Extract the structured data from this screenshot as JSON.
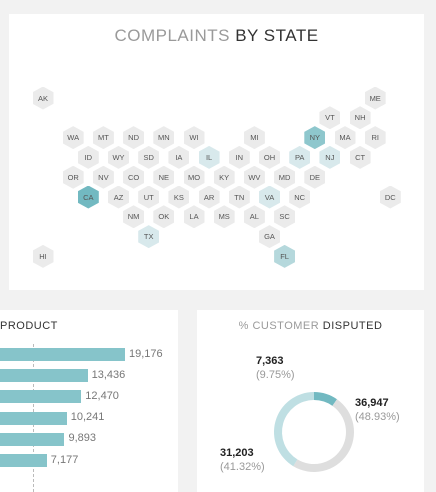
{
  "map": {
    "title_lite": "COMPLAINTS",
    "title_dark": "BY STATE",
    "color_base": "#ebebeb",
    "color_light": "#d8e9ec",
    "color_medium": "#b5d8dc",
    "color_strong": "#8ec7cd",
    "color_max": "#72b9c1",
    "states": [
      {
        "code": "AK",
        "row": 0,
        "col": 0,
        "level": 0
      },
      {
        "code": "ME",
        "row": 0,
        "col": 11,
        "level": 0
      },
      {
        "code": "VT",
        "row": 1,
        "col": 9.5,
        "level": 0
      },
      {
        "code": "NH",
        "row": 1,
        "col": 10.5,
        "level": 0
      },
      {
        "code": "WA",
        "row": 2,
        "col": 1,
        "level": 0
      },
      {
        "code": "MT",
        "row": 2,
        "col": 2,
        "level": 0
      },
      {
        "code": "ND",
        "row": 2,
        "col": 3,
        "level": 0
      },
      {
        "code": "MN",
        "row": 2,
        "col": 4,
        "level": 0
      },
      {
        "code": "WI",
        "row": 2,
        "col": 5,
        "level": 0
      },
      {
        "code": "MI",
        "row": 2,
        "col": 7,
        "level": 0
      },
      {
        "code": "NY",
        "row": 2,
        "col": 9,
        "level": 3
      },
      {
        "code": "MA",
        "row": 2,
        "col": 10,
        "level": 0
      },
      {
        "code": "RI",
        "row": 2,
        "col": 11,
        "level": 0
      },
      {
        "code": "ID",
        "row": 3,
        "col": 1.5,
        "level": 0
      },
      {
        "code": "WY",
        "row": 3,
        "col": 2.5,
        "level": 0
      },
      {
        "code": "SD",
        "row": 3,
        "col": 3.5,
        "level": 0
      },
      {
        "code": "IA",
        "row": 3,
        "col": 4.5,
        "level": 0
      },
      {
        "code": "IL",
        "row": 3,
        "col": 5.5,
        "level": 1
      },
      {
        "code": "IN",
        "row": 3,
        "col": 6.5,
        "level": 0
      },
      {
        "code": "OH",
        "row": 3,
        "col": 7.5,
        "level": 0
      },
      {
        "code": "PA",
        "row": 3,
        "col": 8.5,
        "level": 1
      },
      {
        "code": "NJ",
        "row": 3,
        "col": 9.5,
        "level": 1
      },
      {
        "code": "CT",
        "row": 3,
        "col": 10.5,
        "level": 0
      },
      {
        "code": "OR",
        "row": 4,
        "col": 1,
        "level": 0
      },
      {
        "code": "NV",
        "row": 4,
        "col": 2,
        "level": 0
      },
      {
        "code": "CO",
        "row": 4,
        "col": 3,
        "level": 0
      },
      {
        "code": "NE",
        "row": 4,
        "col": 4,
        "level": 0
      },
      {
        "code": "MO",
        "row": 4,
        "col": 5,
        "level": 0
      },
      {
        "code": "KY",
        "row": 4,
        "col": 6,
        "level": 0
      },
      {
        "code": "WV",
        "row": 4,
        "col": 7,
        "level": 0
      },
      {
        "code": "MD",
        "row": 4,
        "col": 8,
        "level": 0
      },
      {
        "code": "DE",
        "row": 4,
        "col": 9,
        "level": 0
      },
      {
        "code": "CA",
        "row": 5,
        "col": 1.5,
        "level": 4
      },
      {
        "code": "AZ",
        "row": 5,
        "col": 2.5,
        "level": 0
      },
      {
        "code": "UT",
        "row": 5,
        "col": 3.5,
        "level": 0
      },
      {
        "code": "KS",
        "row": 5,
        "col": 4.5,
        "level": 0
      },
      {
        "code": "AR",
        "row": 5,
        "col": 5.5,
        "level": 0
      },
      {
        "code": "TN",
        "row": 5,
        "col": 6.5,
        "level": 0
      },
      {
        "code": "VA",
        "row": 5,
        "col": 7.5,
        "level": 1
      },
      {
        "code": "NC",
        "row": 5,
        "col": 8.5,
        "level": 0
      },
      {
        "code": "DC",
        "row": 5,
        "col": 11.5,
        "level": 0
      },
      {
        "code": "NM",
        "row": 6,
        "col": 3,
        "level": 0
      },
      {
        "code": "OK",
        "row": 6,
        "col": 4,
        "level": 0
      },
      {
        "code": "LA",
        "row": 6,
        "col": 5,
        "level": 0
      },
      {
        "code": "MS",
        "row": 6,
        "col": 6,
        "level": 0
      },
      {
        "code": "AL",
        "row": 6,
        "col": 7,
        "level": 0
      },
      {
        "code": "SC",
        "row": 6,
        "col": 8,
        "level": 0
      },
      {
        "code": "TX",
        "row": 7,
        "col": 3.5,
        "level": 1
      },
      {
        "code": "GA",
        "row": 7,
        "col": 7.5,
        "level": 0
      },
      {
        "code": "HI",
        "row": 8,
        "col": 0,
        "level": 0
      },
      {
        "code": "FL",
        "row": 8,
        "col": 8,
        "level": 2
      }
    ]
  },
  "product": {
    "title": "PRODUCT",
    "bar_color": "#86c4ca",
    "values": [
      19176,
      13436,
      12470,
      10241,
      9893,
      7177
    ],
    "labels": [
      "19,176",
      "13,436",
      "12,470",
      "10,241",
      "9,893",
      "7,177"
    ]
  },
  "disputed": {
    "title_lite": "% CUSTOMER",
    "title_dark": "DISPUTED",
    "slices": [
      {
        "value_label": "7,363",
        "pct_label": "(9.75%)",
        "value": 7363,
        "color": "#72b9c1"
      },
      {
        "value_label": "36,947",
        "pct_label": "(48.93%)",
        "value": 36947,
        "color": "#dedede"
      },
      {
        "value_label": "31,203",
        "pct_label": "(41.32%)",
        "value": 31203,
        "color": "#bfdfe3"
      }
    ]
  }
}
